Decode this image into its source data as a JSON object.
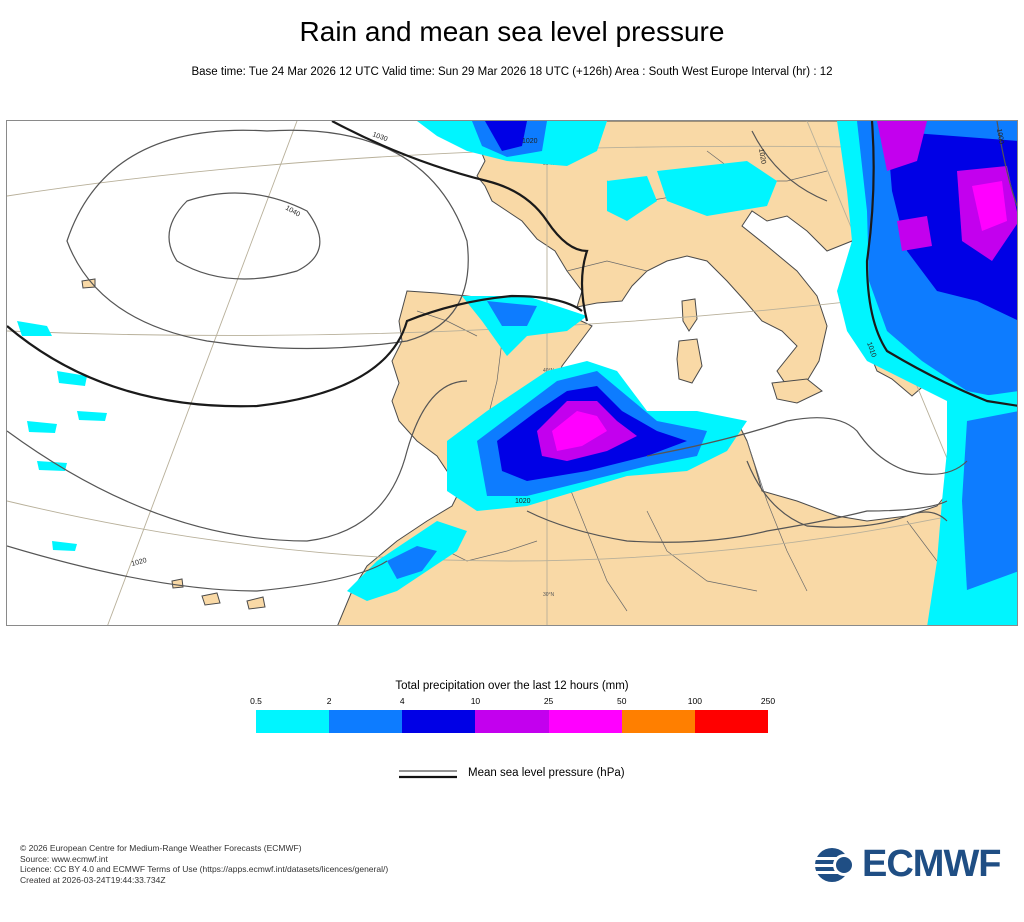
{
  "header": {
    "title": "Rain and mean sea level pressure",
    "subtitle": "Base time: Tue 24 Mar 2026 12 UTC Valid time: Sun 29 Mar 2026 18 UTC (+126h) Area : South West Europe Interval (hr) : 12"
  },
  "map": {
    "region": "South West Europe",
    "colors": {
      "land": "#f9d9a6",
      "sea": "#ffffff",
      "coast": "#4a4a4a",
      "graticule": "#b8b09a",
      "isobar": "#555555",
      "isobar_bold": "#1a1a1a"
    },
    "isobar_labels": [
      "1040",
      "1030",
      "1020",
      "1020",
      "1020",
      "1010",
      "1020",
      "1000"
    ],
    "graticule_labels": [
      "50°N",
      "40°N",
      "30°N"
    ]
  },
  "legend": {
    "title": "Total precipitation over the last 12 hours (mm)",
    "ticks": [
      "0.5",
      "2",
      "4",
      "10",
      "25",
      "50",
      "100",
      "250"
    ],
    "colors": [
      "#00f5ff",
      "#0d7cff",
      "#0000e6",
      "#c300ee",
      "#ff00ff",
      "#ff7f00",
      "#ff0000"
    ],
    "mslp_label": "Mean sea level pressure (hPa)"
  },
  "footer": {
    "lines": [
      "© 2026 European Centre for Medium-Range Weather Forecasts (ECMWF)",
      "Source: www.ecmwf.int",
      "Licence: CC BY 4.0 and ECMWF Terms of Use (https://apps.ecmwf.int/datasets/licences/general/)",
      "Created at 2026-03-24T19:44:33.734Z"
    ]
  },
  "logo": {
    "text": "ECMWF",
    "color": "#1f4e84"
  }
}
